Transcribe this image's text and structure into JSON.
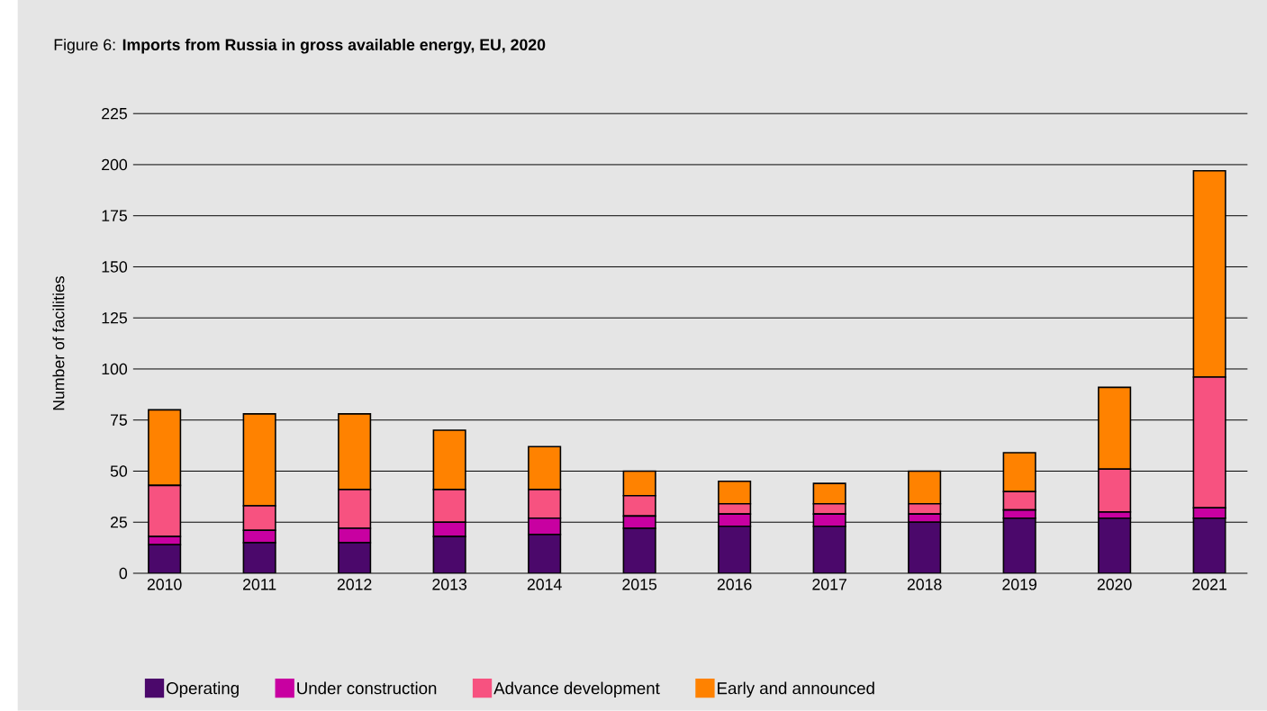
{
  "chart_data": {
    "type": "bar",
    "stacked": true,
    "title": "Figure 6: **Imports from Russia in gross available energy, EU, 2020**",
    "ylabel": "Number of facilities",
    "categories": [
      "2010",
      "2011",
      "2012",
      "2013",
      "2014",
      "2015",
      "2016",
      "2017",
      "2018",
      "2019",
      "2020",
      "2021"
    ],
    "series": [
      {
        "name": "Operating",
        "color": "#4b086b",
        "values": [
          14,
          15,
          15,
          18,
          19,
          22,
          23,
          23,
          25,
          27,
          27,
          27
        ]
      },
      {
        "name": "Under construction",
        "color": "#c800a1",
        "values": [
          4,
          6,
          7,
          7,
          8,
          6,
          6,
          6,
          4,
          4,
          3,
          5
        ]
      },
      {
        "name": "Advance development",
        "color": "#f75280",
        "values": [
          25,
          12,
          19,
          16,
          14,
          10,
          5,
          5,
          5,
          9,
          21,
          64
        ]
      },
      {
        "name": "Early and announced",
        "color": "#ff8200",
        "values": [
          37,
          45,
          37,
          29,
          21,
          12,
          11,
          10,
          16,
          19,
          40,
          101
        ]
      }
    ],
    "ylim": [
      0,
      225
    ],
    "yticks": [
      0,
      25,
      50,
      75,
      100,
      125,
      150,
      175,
      200,
      225
    ],
    "grid": "y",
    "legend": "bottom"
  }
}
